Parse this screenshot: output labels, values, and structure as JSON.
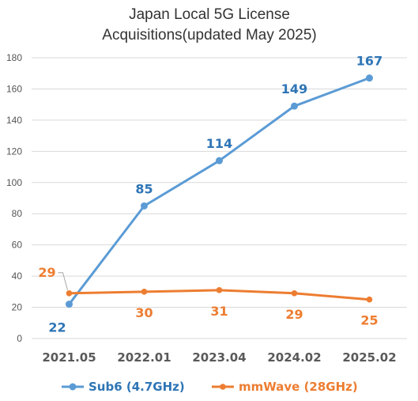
{
  "chart_data": {
    "type": "line",
    "title_lines": [
      "Japan Local 5G License",
      "Acquisitions(updated May 2025)"
    ],
    "categories": [
      "2021.05",
      "2022.01",
      "2023.04",
      "2024.02",
      "2025.02"
    ],
    "ylim": [
      0,
      180
    ],
    "yticks": [
      0,
      20,
      40,
      60,
      80,
      100,
      120,
      140,
      160,
      180
    ],
    "grid": true,
    "legend_position": "bottom",
    "series": [
      {
        "name": "Sub6 (4.7GHz)",
        "color": "#5b9bd5",
        "label_color": "#2e75b6",
        "values": [
          22,
          85,
          114,
          149,
          167
        ]
      },
      {
        "name": "mmWave (28GHz)",
        "color": "#ed7d31",
        "label_color": "#ed7d31",
        "values": [
          29,
          30,
          31,
          29,
          25
        ]
      }
    ]
  }
}
